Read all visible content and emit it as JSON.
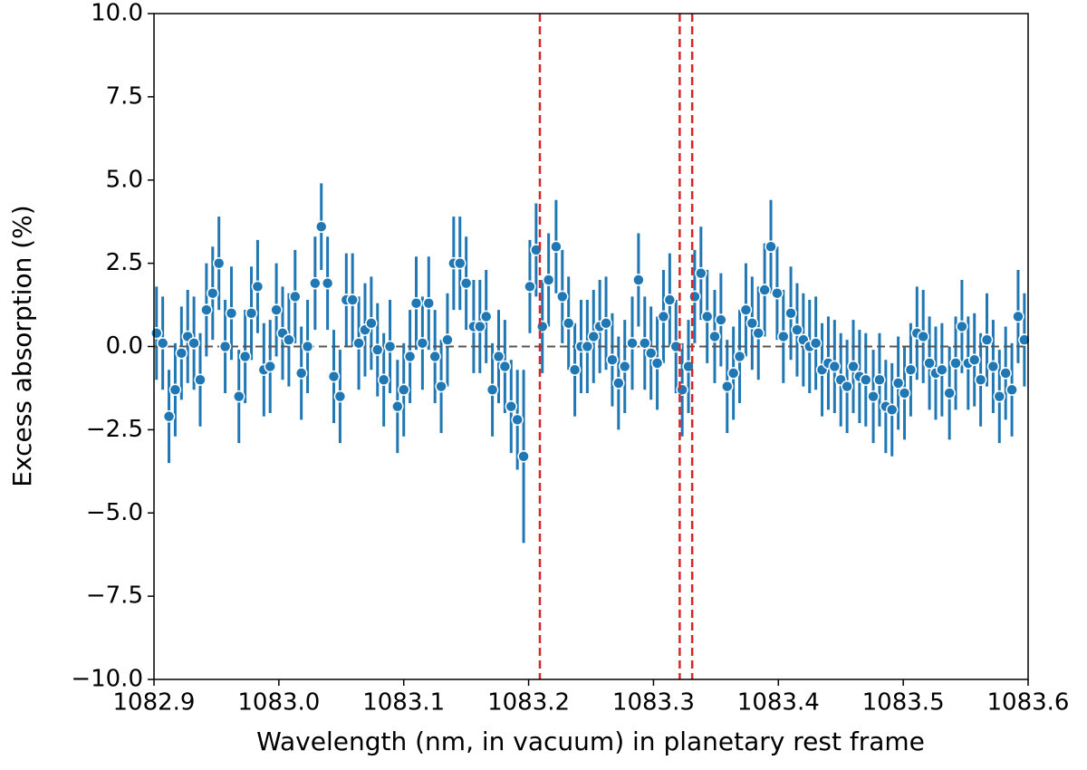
{
  "chart_data": {
    "type": "errorbar",
    "xlabel": "Wavelength (nm, in vacuum) in planetary rest frame",
    "ylabel": "Excess absorption (%)",
    "xlim": [
      1082.9,
      1083.6
    ],
    "ylim": [
      -10,
      10
    ],
    "xticks": [
      1082.9,
      {
        "value": 1083.0,
        "label": "1083.0"
      },
      1083.1,
      1083.2,
      1083.3,
      1083.4,
      1083.5,
      1083.6
    ],
    "yticks": [
      {
        "value": -10,
        "label": "−10.0"
      },
      {
        "value": -7.5,
        "label": "−7.5"
      },
      {
        "value": -5,
        "label": "−5.0"
      },
      {
        "value": -2.5,
        "label": "−2.5"
      },
      {
        "value": 0,
        "label": "0.0"
      },
      2.5,
      {
        "value": 5,
        "label": "5.0"
      },
      7.5,
      {
        "value": 10,
        "label": "10.0"
      }
    ],
    "grid": false,
    "color": "#1f77b4",
    "reference_line": {
      "y": 0,
      "color": "#555555"
    },
    "vlines": [
      {
        "x": 1083.209,
        "color": "#d62728"
      },
      {
        "x": 1083.321,
        "color": "#d62728"
      },
      {
        "x": 1083.331,
        "color": "#d62728"
      }
    ],
    "x": [
      1082.902,
      1082.907,
      1082.912,
      1082.917,
      1082.922,
      1082.927,
      1082.932,
      1082.937,
      1082.942,
      1082.947,
      1082.952,
      1082.957,
      1082.962,
      1082.968,
      1082.973,
      1082.978,
      1082.983,
      1082.988,
      1082.993,
      1082.998,
      1083.003,
      1083.008,
      1083.013,
      1083.018,
      1083.023,
      1083.029,
      1083.034,
      1083.039,
      1083.044,
      1083.049,
      1083.054,
      1083.059,
      1083.064,
      1083.069,
      1083.074,
      1083.079,
      1083.084,
      1083.089,
      1083.095,
      1083.1,
      1083.105,
      1083.11,
      1083.115,
      1083.12,
      1083.125,
      1083.13,
      1083.135,
      1083.14,
      1083.145,
      1083.15,
      1083.156,
      1083.161,
      1083.166,
      1083.171,
      1083.176,
      1083.181,
      1083.186,
      1083.191,
      1083.196,
      1083.201,
      1083.206,
      1083.211,
      1083.216,
      1083.222,
      1083.227,
      1083.232,
      1083.237,
      1083.242,
      1083.247,
      1083.252,
      1083.257,
      1083.262,
      1083.267,
      1083.272,
      1083.277,
      1083.283,
      1083.288,
      1083.293,
      1083.298,
      1083.303,
      1083.308,
      1083.313,
      1083.318,
      1083.323,
      1083.328,
      1083.333,
      1083.338,
      1083.343,
      1083.349,
      1083.354,
      1083.359,
      1083.364,
      1083.369,
      1083.374,
      1083.379,
      1083.384,
      1083.389,
      1083.394,
      1083.399,
      1083.404,
      1083.41,
      1083.415,
      1083.42,
      1083.425,
      1083.43,
      1083.435,
      1083.44,
      1083.445,
      1083.45,
      1083.455,
      1083.46,
      1083.465,
      1083.47,
      1083.476,
      1083.481,
      1083.486,
      1083.491,
      1083.496,
      1083.501,
      1083.506,
      1083.511,
      1083.516,
      1083.521,
      1083.526,
      1083.531,
      1083.537,
      1083.542,
      1083.547,
      1083.552,
      1083.557,
      1083.562,
      1083.567,
      1083.572,
      1083.577,
      1083.582,
      1083.587,
      1083.592,
      1083.597
    ],
    "values": [
      0.4,
      0.1,
      -2.1,
      -1.3,
      -0.2,
      0.3,
      0.1,
      -1.0,
      1.1,
      1.6,
      2.5,
      0.0,
      1.0,
      -1.5,
      -0.3,
      1.0,
      1.8,
      -0.7,
      -0.6,
      1.1,
      0.4,
      0.2,
      1.5,
      -0.8,
      0.0,
      1.9,
      3.6,
      1.9,
      -0.9,
      -1.5,
      1.4,
      1.4,
      0.1,
      0.5,
      0.7,
      -0.1,
      -1.0,
      0.0,
      -1.8,
      -1.3,
      -0.3,
      1.3,
      0.1,
      1.3,
      -0.3,
      -1.2,
      0.2,
      2.5,
      2.5,
      1.9,
      0.6,
      0.6,
      0.9,
      -1.3,
      -0.3,
      -0.6,
      -1.8,
      -2.2,
      -3.3,
      1.8,
      2.9,
      0.6,
      2.0,
      3.0,
      1.5,
      0.7,
      -0.7,
      0.0,
      0.0,
      0.3,
      0.6,
      0.7,
      -0.4,
      -1.1,
      -0.6,
      0.1,
      2.0,
      0.1,
      -0.2,
      -0.5,
      0.9,
      1.4,
      0.0,
      -1.3,
      -0.6,
      1.5,
      2.2,
      0.9,
      0.3,
      0.8,
      -1.2,
      -0.8,
      -0.3,
      1.1,
      0.7,
      0.4,
      1.7,
      3.0,
      1.6,
      0.3,
      1.0,
      0.5,
      0.2,
      0.0,
      0.1,
      -0.7,
      -0.5,
      -0.6,
      -1.0,
      -1.2,
      -0.6,
      -0.9,
      -1.0,
      -1.5,
      -1.0,
      -1.8,
      -1.9,
      -1.1,
      -1.4,
      -0.7,
      0.4,
      0.3,
      -0.5,
      -0.8,
      -0.7,
      -1.4,
      -0.5,
      0.6,
      -0.5,
      -0.4,
      -1.0,
      0.2,
      -0.6,
      -1.5,
      -0.8,
      -1.3,
      0.9,
      0.2
    ],
    "errors": [
      1.4,
      1.4,
      1.4,
      1.4,
      1.4,
      1.4,
      1.4,
      1.4,
      1.4,
      1.4,
      1.4,
      1.4,
      1.4,
      1.4,
      1.4,
      1.4,
      1.4,
      1.4,
      1.4,
      1.4,
      1.4,
      1.4,
      1.4,
      1.4,
      1.4,
      1.4,
      1.3,
      1.4,
      1.4,
      1.4,
      1.4,
      1.4,
      1.4,
      1.4,
      1.4,
      1.4,
      1.4,
      1.4,
      1.4,
      1.4,
      1.4,
      1.4,
      1.4,
      1.4,
      1.4,
      1.4,
      1.4,
      1.4,
      1.4,
      1.4,
      1.4,
      1.4,
      1.4,
      1.4,
      1.4,
      1.4,
      1.4,
      1.5,
      2.6,
      1.4,
      1.4,
      1.4,
      1.4,
      1.4,
      1.4,
      1.4,
      1.4,
      1.4,
      1.4,
      1.4,
      1.4,
      1.4,
      1.4,
      1.4,
      1.4,
      1.4,
      1.4,
      1.4,
      1.4,
      1.4,
      1.4,
      1.4,
      1.4,
      1.4,
      1.4,
      1.4,
      1.4,
      1.4,
      1.4,
      1.4,
      1.4,
      1.4,
      1.4,
      1.4,
      1.4,
      1.4,
      1.4,
      1.4,
      1.4,
      1.4,
      1.4,
      1.4,
      1.4,
      1.4,
      1.4,
      1.4,
      1.4,
      1.4,
      1.4,
      1.4,
      1.4,
      1.4,
      1.4,
      1.4,
      1.4,
      1.4,
      1.4,
      1.4,
      1.4,
      1.4,
      1.4,
      1.4,
      1.4,
      1.4,
      1.4,
      1.4,
      1.4,
      1.4,
      1.4,
      1.4,
      1.4,
      1.4,
      1.4,
      1.4,
      1.4,
      1.4,
      1.4,
      1.4
    ]
  }
}
